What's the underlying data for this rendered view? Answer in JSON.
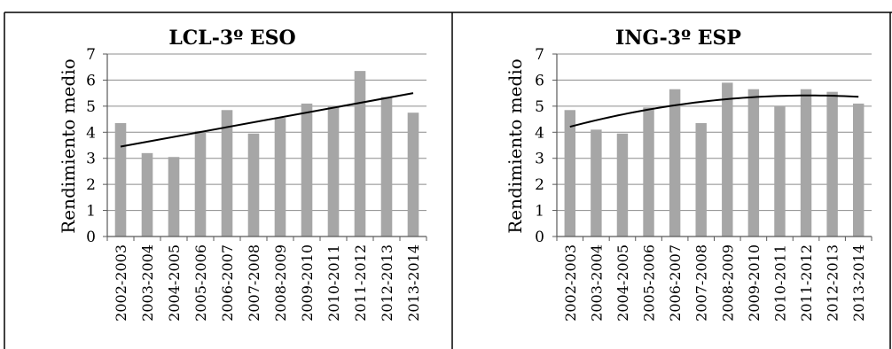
{
  "chart_data": [
    {
      "type": "bar",
      "title": "LCL-3º ESO",
      "ylabel": "Rendimiento medio",
      "xlabel": "",
      "ylim": [
        0,
        7
      ],
      "yticks": [
        0,
        1,
        2,
        3,
        4,
        5,
        6,
        7
      ],
      "grid": true,
      "legend": "none",
      "bar_color": "#a6a6a6",
      "trend": "linear",
      "trend_points": [
        {
          "x": "2002-2003",
          "y": 3.45
        },
        {
          "x": "2013-2014",
          "y": 5.5
        }
      ],
      "categories": [
        "2002-2003",
        "2003-2004",
        "2004-2005",
        "2005-2006",
        "2006-2007",
        "2007-2008",
        "2008-2009",
        "2009-2010",
        "2010-2011",
        "2011-2012",
        "2012-2013",
        "2013-2014"
      ],
      "values": [
        4.35,
        3.2,
        3.05,
        4.05,
        4.85,
        3.95,
        4.55,
        5.1,
        5.0,
        6.35,
        5.35,
        4.75
      ]
    },
    {
      "type": "bar",
      "title": "ING-3º ESP",
      "ylabel": "Rendimiento medio",
      "xlabel": "",
      "ylim": [
        0,
        7
      ],
      "yticks": [
        0,
        1,
        2,
        3,
        4,
        5,
        6,
        7
      ],
      "grid": true,
      "legend": "none",
      "bar_color": "#a6a6a6",
      "trend": "quadratic",
      "trend_points": [
        {
          "x": "2002-2003",
          "y": 4.22
        },
        {
          "x": "2006-2007",
          "y": 5.0
        },
        {
          "x": "2009-2010",
          "y": 5.38
        },
        {
          "x": "2013-2014",
          "y": 5.35
        }
      ],
      "categories": [
        "2002-2003",
        "2003-2004",
        "2004-2005",
        "2005-2006",
        "2006-2007",
        "2007-2008",
        "2008-2009",
        "2009-2010",
        "2010-2011",
        "2011-2012",
        "2012-2013",
        "2013-2014"
      ],
      "values": [
        4.85,
        4.1,
        3.95,
        4.95,
        5.65,
        4.35,
        5.9,
        5.65,
        5.0,
        5.65,
        5.55,
        5.1
      ]
    }
  ]
}
